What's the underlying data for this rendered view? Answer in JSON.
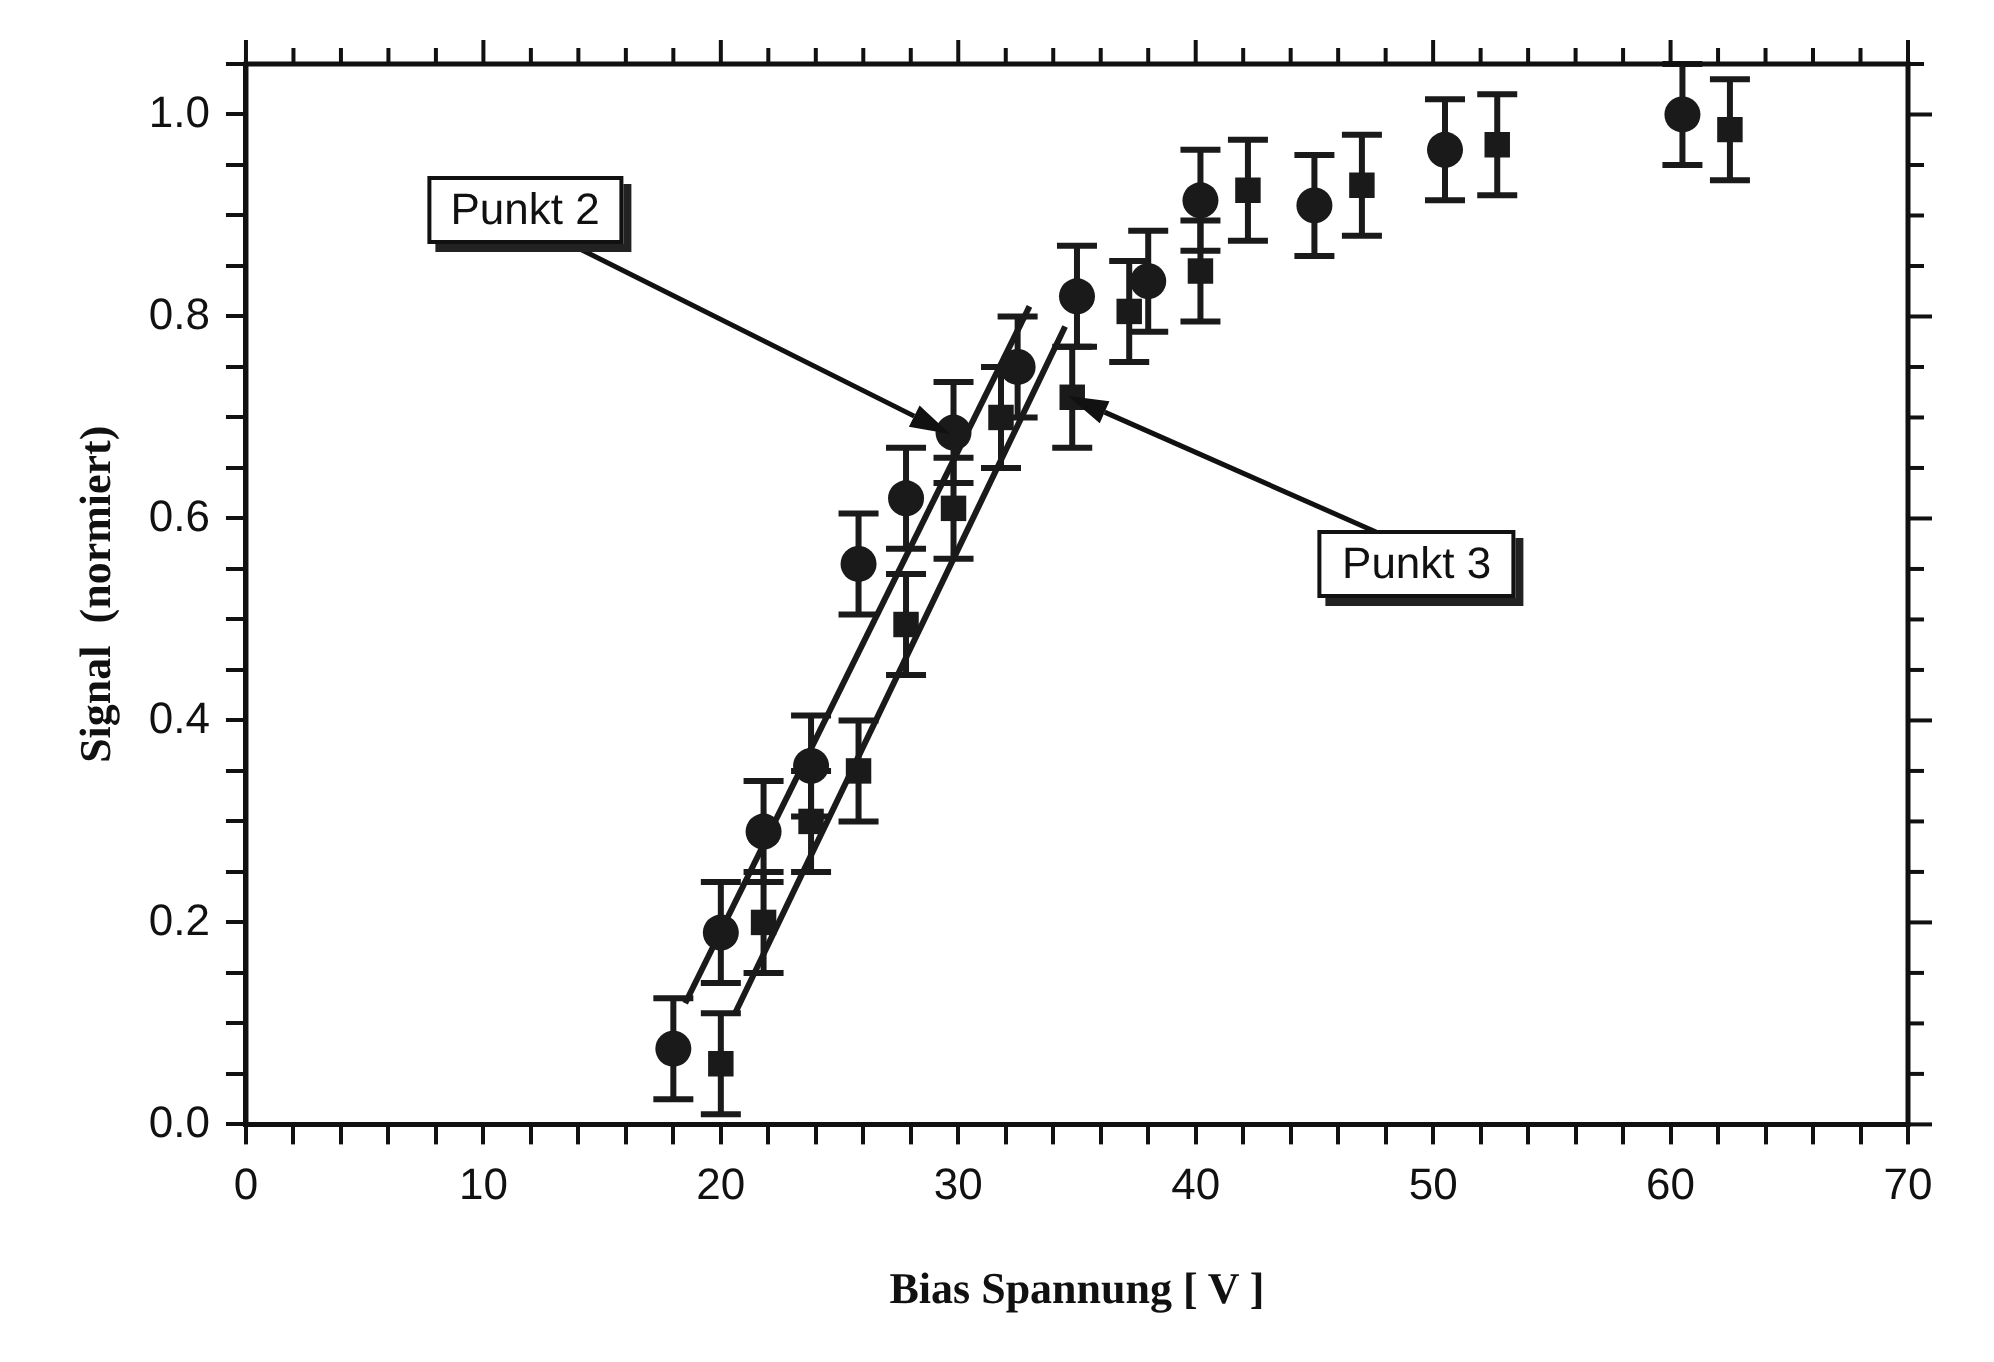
{
  "chart_data": {
    "type": "scatter",
    "xlabel": "Bias Spannung [ V ]",
    "ylabel": "Signal  (normiert)",
    "xlim": [
      0,
      70
    ],
    "xticks": [
      0,
      {
        "value": 2,
        "label": null
      },
      {
        "value": 4,
        "label": null
      },
      {
        "value": 6,
        "label": null
      },
      {
        "value": 8,
        "label": null
      },
      10,
      {
        "value": 12,
        "label": null
      },
      {
        "value": 14,
        "label": null
      },
      {
        "value": 16,
        "label": null
      },
      {
        "value": 18,
        "label": null
      },
      20,
      {
        "value": 22,
        "label": null
      },
      {
        "value": 24,
        "label": null
      },
      {
        "value": 26,
        "label": null
      },
      {
        "value": 28,
        "label": null
      },
      30,
      {
        "value": 32,
        "label": null
      },
      {
        "value": 34,
        "label": null
      },
      {
        "value": 36,
        "label": null
      },
      {
        "value": 38,
        "label": null
      },
      40,
      {
        "value": 42,
        "label": null
      },
      {
        "value": 44,
        "label": null
      },
      {
        "value": 46,
        "label": null
      },
      {
        "value": 48,
        "label": null
      },
      50,
      {
        "value": 52,
        "label": null
      },
      {
        "value": 54,
        "label": null
      },
      {
        "value": 56,
        "label": null
      },
      {
        "value": 58,
        "label": null
      },
      60,
      {
        "value": 62,
        "label": null
      },
      {
        "value": 64,
        "label": null
      },
      {
        "value": 66,
        "label": null
      },
      {
        "value": 68,
        "label": null
      },
      70
    ],
    "ylim": [
      0,
      1.05
    ],
    "yticks": [
      {
        "value": 0,
        "label": "0.0"
      },
      {
        "value": 0.05,
        "label": null
      },
      {
        "value": 0.1,
        "label": null
      },
      {
        "value": 0.15,
        "label": null
      },
      {
        "value": 0.2,
        "label": "0.2"
      },
      {
        "value": 0.25,
        "label": null
      },
      {
        "value": 0.3,
        "label": null
      },
      {
        "value": 0.35,
        "label": null
      },
      {
        "value": 0.4,
        "label": "0.4"
      },
      {
        "value": 0.45,
        "label": null
      },
      {
        "value": 0.5,
        "label": null
      },
      {
        "value": 0.55,
        "label": null
      },
      {
        "value": 0.6,
        "label": "0.6"
      },
      {
        "value": 0.65,
        "label": null
      },
      {
        "value": 0.7,
        "label": null
      },
      {
        "value": 0.75,
        "label": null
      },
      {
        "value": 0.8,
        "label": "0.8"
      },
      {
        "value": 0.85,
        "label": null
      },
      {
        "value": 0.9,
        "label": null
      },
      {
        "value": 0.95,
        "label": null
      },
      {
        "value": 1,
        "label": "1.0"
      },
      {
        "value": 1.05,
        "label": null
      }
    ],
    "grid": false,
    "legend": false,
    "series": [
      {
        "marker": "circle",
        "color": "#1a1a1a",
        "x": [
          18,
          20,
          21.8,
          23.8,
          25.8,
          27.8,
          29.8,
          32.5,
          35,
          38,
          40.2,
          45,
          50.5,
          60.5
        ],
        "values": [
          0.075,
          0.19,
          0.29,
          0.355,
          0.555,
          0.62,
          0.685,
          0.75,
          0.82,
          0.835,
          0.915,
          0.91,
          0.965,
          1.0
        ],
        "errors": [
          0.05,
          0.05,
          0.05,
          0.05,
          0.05,
          0.05,
          0.05,
          0.05,
          0.05,
          0.05,
          0.05,
          0.05,
          0.05,
          0.05
        ]
      },
      {
        "marker": "square",
        "color": "#1a1a1a",
        "x": [
          20,
          21.8,
          23.8,
          25.8,
          27.8,
          29.8,
          31.8,
          34.8,
          37.2,
          40.2,
          42.2,
          47,
          52.7,
          62.5
        ],
        "values": [
          0.06,
          0.2,
          0.3,
          0.35,
          0.495,
          0.61,
          0.7,
          0.72,
          0.805,
          0.845,
          0.925,
          0.93,
          0.97,
          0.985
        ],
        "errors": [
          0.05,
          0.05,
          0.05,
          0.05,
          0.05,
          0.05,
          0.05,
          0.05,
          0.05,
          0.05,
          0.05,
          0.05,
          0.05,
          0.05
        ]
      },
      {
        "type": "line",
        "marker": "none",
        "line_style": "solid",
        "color": "#1a1a1a",
        "x": [
          18.5,
          33
        ],
        "values": [
          0.12,
          0.81
        ]
      },
      {
        "type": "line",
        "marker": "none",
        "line_style": "solid",
        "color": "#1a1a1a",
        "x": [
          20.6,
          34.5
        ],
        "values": [
          0.11,
          0.79
        ]
      }
    ],
    "annotations": [
      "Punkt 2",
      "Punkt 3"
    ]
  }
}
